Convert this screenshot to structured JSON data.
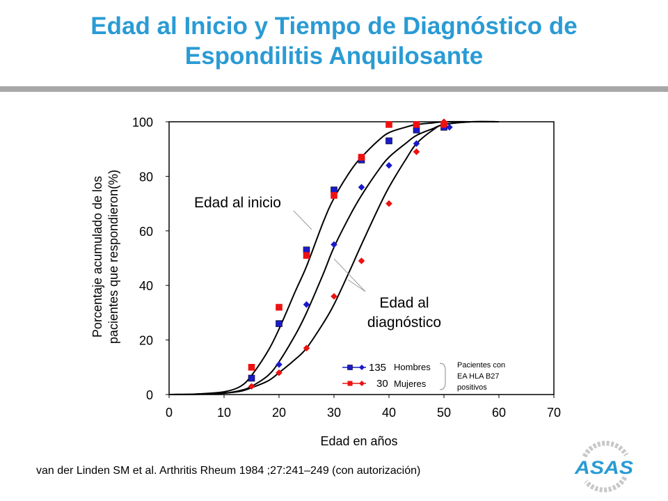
{
  "slide": {
    "title_line1": "Edad al Inicio y Tiempo de Diagnóstico de",
    "title_line2": "Espondilitis Anquilosante",
    "citation": "van der Linden SM et al. Arthritis Rheum 1984 ;27:241–249 (con autorización)",
    "logo_text": "ASAS",
    "colors": {
      "title": "#2a9bd4",
      "bar": "#a7a7a7",
      "men": "#1a1acc",
      "women": "#ee1111",
      "logo": "#2a9bd4"
    }
  },
  "chart_data": {
    "type": "scatter",
    "xlabel": "Edad en años",
    "ylabel_line1": "Porcentaje acumulado de los",
    "ylabel_line2": "pacientes que respondieron(%)",
    "xlim": [
      0,
      70
    ],
    "ylim": [
      0,
      100
    ],
    "x_ticks": [
      "0",
      "10",
      "20",
      "30",
      "40",
      "50",
      "60",
      "70"
    ],
    "y_ticks": [
      "0",
      "20",
      "40",
      "60",
      "80",
      "100"
    ],
    "grid": false,
    "annotations": {
      "onset": "Edad al inicio",
      "diagnosis_line1": "Edad al",
      "diagnosis_line2": "diagnóstico"
    },
    "legend": {
      "men_count": "135",
      "men_label": "Hombres",
      "women_count": "30",
      "women_label": "Mujeres",
      "note_line1": "Pacientes con",
      "note_line2": "EA HLA B27",
      "note_line3": "positivos",
      "placement": "bottom-right"
    },
    "series": [
      {
        "name": "Hombres",
        "group": "onset",
        "marker": "square",
        "color": "#1a1acc",
        "x": [
          15,
          20,
          25,
          30,
          35,
          40,
          45,
          50
        ],
        "y": [
          6,
          26,
          53,
          75,
          86,
          93,
          97,
          98
        ]
      },
      {
        "name": "Mujeres",
        "group": "onset",
        "marker": "square",
        "color": "#ee1111",
        "x": [
          15,
          20,
          25,
          30,
          35,
          40,
          45,
          50
        ],
        "y": [
          10,
          32,
          51,
          73,
          87,
          99,
          99,
          99
        ]
      },
      {
        "name": "Hombres",
        "group": "diagnosis",
        "marker": "diamond",
        "color": "#1a1acc",
        "x": [
          20,
          25,
          30,
          35,
          40,
          45,
          51
        ],
        "y": [
          11,
          33,
          55,
          76,
          84,
          92,
          98
        ]
      },
      {
        "name": "Mujeres",
        "group": "diagnosis",
        "marker": "diamond",
        "color": "#ee1111",
        "x": [
          15,
          20,
          25,
          30,
          35,
          40,
          45,
          50
        ],
        "y": [
          3,
          8,
          17,
          36,
          49,
          70,
          89,
          100
        ]
      }
    ],
    "curves": [
      {
        "x": [
          0,
          5,
          10,
          13,
          15,
          18,
          20,
          23,
          25,
          28,
          30,
          33,
          35,
          38,
          40,
          43,
          45,
          48,
          50,
          55,
          60
        ],
        "y": [
          0,
          0.2,
          1,
          3,
          7,
          16,
          24,
          38,
          47,
          63,
          72,
          82,
          87,
          93,
          96,
          98,
          99,
          99.6,
          100,
          100,
          100
        ]
      },
      {
        "x": [
          0,
          5,
          10,
          13,
          15,
          18,
          20,
          23,
          25,
          28,
          30,
          33,
          35,
          38,
          40,
          43,
          45,
          48,
          50,
          55,
          60
        ],
        "y": [
          0,
          0.1,
          0.5,
          1.5,
          3,
          7,
          12,
          22,
          30,
          44,
          54,
          66,
          73,
          82,
          87,
          92,
          95,
          97.5,
          99,
          100,
          100
        ]
      },
      {
        "x": [
          0,
          5,
          10,
          13,
          15,
          18,
          20,
          23,
          25,
          28,
          30,
          33,
          35,
          38,
          40,
          43,
          45,
          48,
          50,
          55,
          60
        ],
        "y": [
          0,
          0.1,
          0.5,
          1.2,
          2.5,
          5,
          8,
          13,
          17,
          26,
          33,
          46,
          55,
          68,
          76,
          86,
          92,
          97,
          99,
          100,
          100
        ]
      }
    ]
  }
}
